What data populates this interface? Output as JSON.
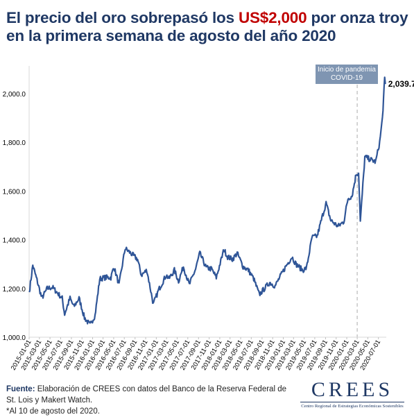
{
  "title": {
    "part1": "El precio del oro sobrepasó los ",
    "highlight": "US$2,000",
    "part2": " por onza troy en la primera semana de agosto del año 2020"
  },
  "colors": {
    "title": "#1f3864",
    "highlight": "#c00000",
    "line": "#2f5597",
    "annotation_bg": "#7f95b2"
  },
  "annotation": {
    "line1": "Inicio de pandemia",
    "line2": "COVID-19"
  },
  "footer": {
    "source_label": "Fuente:",
    "source_text": " Elaboración de CREES con datos del Banco de la Reserva Federal de St. Lois y Makert Watch.",
    "note": "*Al 10 de agosto del 2020."
  },
  "logo": {
    "name": "CREES",
    "subtitle": "Centro Regional de Estrategias Económicas Sostenibles"
  },
  "chart_data": {
    "type": "line",
    "title": "El precio del oro sobrepasó los US$2,000 por onza troy en la primera semana de agosto del año 2020",
    "xlabel": "",
    "ylabel": "",
    "ylim": [
      1000,
      2000
    ],
    "yticks": [
      "1,000.0",
      "1,200.0",
      "1,400.0",
      "1,600.0",
      "1,800.0",
      "2,000.0"
    ],
    "xticks": [
      "2015-01-01",
      "2015-03-01",
      "2015-05-01",
      "2015-07-01",
      "2015-09-01",
      "2015-11-01",
      "2016-01-01",
      "2016-03-01",
      "2016-05-01",
      "2016-07-01",
      "2016-09-01",
      "2016-11-01",
      "2017-01-01",
      "2017-03-01",
      "2017-05-01",
      "2017-07-01",
      "2017-09-01",
      "2017-11-01",
      "2018-01-01",
      "2018-03-01",
      "2018-05-01",
      "2018-07-01",
      "2018-09-01",
      "2018-11-01",
      "2019-01-01",
      "2019-03-01",
      "2019-05-01",
      "2019-07-01",
      "2019-09-01",
      "2019-11-01",
      "2020-01-01",
      "2020-03-01",
      "2020-05-01",
      "2020-07-01"
    ],
    "marker_date": "2020-03-01",
    "end_label": "2,039.7",
    "grid": false,
    "legend": "none",
    "series": [
      {
        "x": [
          "2015-01-02",
          "2015-01-22",
          "2015-02-15",
          "2015-03-15",
          "2015-04-15",
          "2015-05-15",
          "2015-06-15",
          "2015-07-10",
          "2015-07-24",
          "2015-08-24",
          "2015-09-15",
          "2015-10-15",
          "2015-11-15",
          "2015-12-17",
          "2016-01-15",
          "2016-02-11",
          "2016-03-15",
          "2016-04-15",
          "2016-05-02",
          "2016-06-01",
          "2016-06-24",
          "2016-07-06",
          "2016-08-15",
          "2016-09-15",
          "2016-10-07",
          "2016-11-08",
          "2016-12-15",
          "2017-01-15",
          "2017-02-27",
          "2017-03-15",
          "2017-04-15",
          "2017-05-09",
          "2017-06-06",
          "2017-07-10",
          "2017-08-15",
          "2017-09-08",
          "2017-10-15",
          "2017-11-15",
          "2017-12-12",
          "2018-01-25",
          "2018-02-15",
          "2018-03-15",
          "2018-04-11",
          "2018-05-15",
          "2018-06-15",
          "2018-07-15",
          "2018-08-16",
          "2018-09-15",
          "2018-10-15",
          "2018-11-15",
          "2018-12-15",
          "2019-01-15",
          "2019-02-20",
          "2019-03-15",
          "2019-04-23",
          "2019-05-15",
          "2019-06-15",
          "2019-07-15",
          "2019-08-15",
          "2019-09-04",
          "2019-10-01",
          "2019-11-12",
          "2019-12-15",
          "2020-01-08",
          "2020-01-31",
          "2020-02-24",
          "2020-03-09",
          "2020-03-19",
          "2020-04-14",
          "2020-05-15",
          "2020-06-15",
          "2020-07-08",
          "2020-07-24",
          "2020-08-06",
          "2020-08-10"
        ],
        "values": [
          1185,
          1295,
          1235,
          1160,
          1200,
          1205,
          1180,
          1160,
          1095,
          1160,
          1125,
          1160,
          1080,
          1050,
          1090,
          1240,
          1245,
          1245,
          1290,
          1215,
          1315,
          1365,
          1340,
          1320,
          1255,
          1275,
          1135,
          1195,
          1255,
          1240,
          1275,
          1230,
          1290,
          1215,
          1280,
          1345,
          1285,
          1280,
          1245,
          1360,
          1330,
          1320,
          1345,
          1290,
          1275,
          1240,
          1175,
          1200,
          1225,
          1210,
          1250,
          1290,
          1330,
          1300,
          1275,
          1285,
          1410,
          1415,
          1500,
          1550,
          1480,
          1455,
          1475,
          1570,
          1580,
          1670,
          1675,
          1475,
          1740,
          1730,
          1720,
          1800,
          1900,
          2060,
          2039.7
        ]
      }
    ]
  }
}
